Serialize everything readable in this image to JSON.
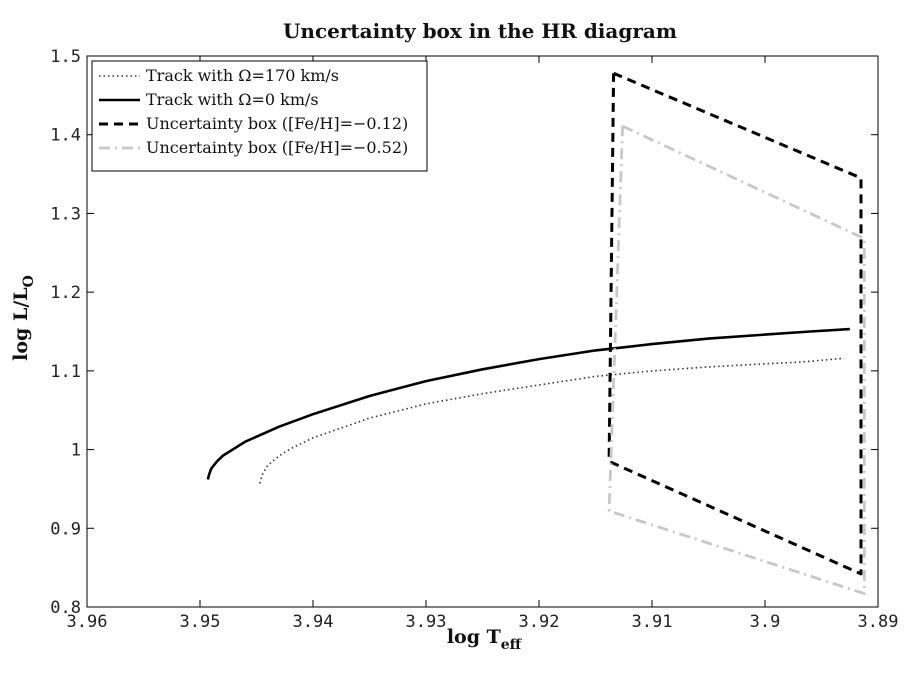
{
  "chart_data": {
    "type": "line",
    "title": "Uncertainty box in the HR diagram",
    "xlabel": {
      "main": "log T",
      "sub": "eff"
    },
    "ylabel": {
      "main": "log L/L",
      "sub": "O"
    },
    "xlim": [
      3.96,
      3.89
    ],
    "ylim": [
      0.8,
      1.5
    ],
    "x_reversed": true,
    "xticks": [
      3.96,
      3.95,
      3.94,
      3.93,
      3.92,
      3.91,
      3.9,
      3.89
    ],
    "xtick_labels": [
      "3.96",
      "3.95",
      "3.94",
      "3.93",
      "3.92",
      "3.91",
      "3.9",
      "3.89"
    ],
    "yticks": [
      0.8,
      0.9,
      1.0,
      1.1,
      1.2,
      1.3,
      1.4,
      1.5
    ],
    "ytick_labels": [
      "0.8",
      "0.9",
      "1",
      "1.1",
      "1.2",
      "1.3",
      "1.4",
      "1.5"
    ],
    "grid": false,
    "legend_position": "top-left",
    "series": [
      {
        "name": "Track with Ω=170 km/s",
        "style": "dotted",
        "color": "#333333",
        "x": [
          3.9447,
          3.9445,
          3.944,
          3.943,
          3.942,
          3.94,
          3.935,
          3.93,
          3.925,
          3.92,
          3.915,
          3.91,
          3.905,
          3.9,
          3.897,
          3.893
        ],
        "y": [
          0.957,
          0.968,
          0.98,
          0.992,
          1.001,
          1.015,
          1.04,
          1.058,
          1.071,
          1.082,
          1.093,
          1.1,
          1.105,
          1.109,
          1.111,
          1.116
        ]
      },
      {
        "name": "Track with Ω=0 km/s",
        "style": "solid",
        "color": "#000000",
        "x": [
          3.9493,
          3.9492,
          3.949,
          3.9485,
          3.948,
          3.946,
          3.943,
          3.94,
          3.935,
          3.93,
          3.925,
          3.92,
          3.915,
          3.91,
          3.905,
          3.9,
          3.896,
          3.8925
        ],
        "y": [
          0.962,
          0.968,
          0.976,
          0.985,
          0.992,
          1.01,
          1.029,
          1.045,
          1.068,
          1.087,
          1.102,
          1.115,
          1.126,
          1.134,
          1.141,
          1.146,
          1.15,
          1.153
        ]
      },
      {
        "name": "Uncertainty box ([Fe/H]=−0.12)",
        "style": "dashed",
        "color": "#000000",
        "x": [
          3.9134,
          3.8915,
          3.8915,
          3.9138,
          3.9134
        ],
        "y": [
          1.478,
          1.345,
          0.842,
          0.985,
          1.478
        ]
      },
      {
        "name": "Uncertainty box ([Fe/H]=−0.52)",
        "style": "dashdot",
        "color": "#c8c8c8",
        "x": [
          3.9126,
          3.8912,
          3.8912,
          3.9138,
          3.9126
        ],
        "y": [
          1.411,
          1.268,
          0.817,
          0.922,
          1.411
        ]
      }
    ]
  }
}
